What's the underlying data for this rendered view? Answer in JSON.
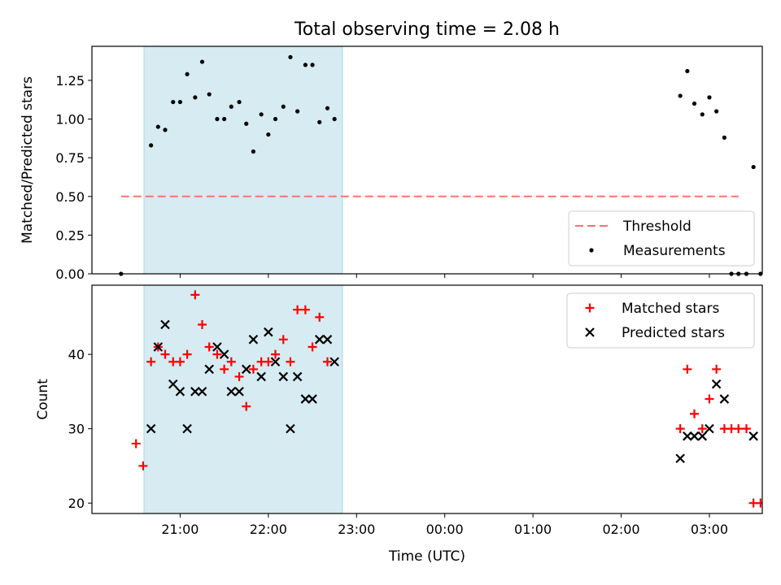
{
  "chart_data": {
    "title": "Total observing time = 2.08 h",
    "x_label": "Time (UTC)",
    "x_unit": "hours since 20:00 UTC (x ticks shown as clock time)",
    "x_ticks": [
      {
        "x": 1,
        "label": "21:00"
      },
      {
        "x": 2,
        "label": "22:00"
      },
      {
        "x": 3,
        "label": "23:00"
      },
      {
        "x": 4,
        "label": "00:00"
      },
      {
        "x": 5,
        "label": "01:00"
      },
      {
        "x": 6,
        "label": "02:00"
      },
      {
        "x": 7,
        "label": "03:00"
      }
    ],
    "xlim": [
      0.0,
      7.6
    ],
    "shaded_interval": [
      0.59,
      2.84
    ],
    "panels": [
      {
        "id": "ratio",
        "type": "scatter",
        "y_label": "Matched/Predicted stars",
        "ylim": [
          0.0,
          1.47
        ],
        "y_ticks": [
          "0.00",
          "0.25",
          "0.50",
          "0.75",
          "1.00",
          "1.25"
        ],
        "threshold": {
          "name": "Threshold",
          "value": 0.5,
          "x_range": [
            0.33,
            7.33
          ],
          "color": "#ff7070"
        },
        "legend": {
          "position": "lower right",
          "entries": [
            "Threshold",
            "Measurements"
          ]
        },
        "series": [
          {
            "name": "Measurements",
            "marker": "dot",
            "color": "#000000",
            "points": [
              [
                0.33,
                0.0
              ],
              [
                0.67,
                0.83
              ],
              [
                0.75,
                0.95
              ],
              [
                0.83,
                0.93
              ],
              [
                0.92,
                1.11
              ],
              [
                1.0,
                1.11
              ],
              [
                1.08,
                1.29
              ],
              [
                1.17,
                1.14
              ],
              [
                1.25,
                1.37
              ],
              [
                1.33,
                1.16
              ],
              [
                1.42,
                1.0
              ],
              [
                1.5,
                1.0
              ],
              [
                1.58,
                1.08
              ],
              [
                1.67,
                1.11
              ],
              [
                1.75,
                0.97
              ],
              [
                1.83,
                0.79
              ],
              [
                1.92,
                1.03
              ],
              [
                2.0,
                0.9
              ],
              [
                2.08,
                1.0
              ],
              [
                2.17,
                1.08
              ],
              [
                2.25,
                1.4
              ],
              [
                2.33,
                1.05
              ],
              [
                2.42,
                1.35
              ],
              [
                2.5,
                1.35
              ],
              [
                2.58,
                0.98
              ],
              [
                2.67,
                1.07
              ],
              [
                2.75,
                1.0
              ],
              [
                6.67,
                1.15
              ],
              [
                6.75,
                1.31
              ],
              [
                6.83,
                1.1
              ],
              [
                6.92,
                1.03
              ],
              [
                7.0,
                1.14
              ],
              [
                7.08,
                1.05
              ],
              [
                7.17,
                0.88
              ],
              [
                7.25,
                0.0
              ],
              [
                7.33,
                0.0
              ],
              [
                7.42,
                0.0
              ],
              [
                7.5,
                0.69
              ],
              [
                7.58,
                0.0
              ]
            ]
          }
        ]
      },
      {
        "id": "counts",
        "type": "scatter",
        "y_label": "Count",
        "ylim": [
          18.6,
          49.3
        ],
        "y_ticks": [
          "20",
          "30",
          "40"
        ],
        "legend": {
          "position": "upper right",
          "entries": [
            "Matched stars",
            "Predicted stars"
          ]
        },
        "series": [
          {
            "name": "Matched stars",
            "marker": "plus",
            "color": "#ff0000",
            "points": [
              [
                0.5,
                28
              ],
              [
                0.58,
                25
              ],
              [
                0.67,
                39
              ],
              [
                0.75,
                41
              ],
              [
                0.83,
                40
              ],
              [
                0.92,
                39
              ],
              [
                1.0,
                39
              ],
              [
                1.08,
                40
              ],
              [
                1.17,
                48
              ],
              [
                1.25,
                44
              ],
              [
                1.33,
                41
              ],
              [
                1.42,
                40
              ],
              [
                1.5,
                38
              ],
              [
                1.58,
                39
              ],
              [
                1.67,
                37
              ],
              [
                1.75,
                33
              ],
              [
                1.83,
                38
              ],
              [
                1.92,
                39
              ],
              [
                2.0,
                39
              ],
              [
                2.08,
                40
              ],
              [
                2.17,
                42
              ],
              [
                2.25,
                39
              ],
              [
                2.33,
                46
              ],
              [
                2.42,
                46
              ],
              [
                2.5,
                41
              ],
              [
                2.58,
                45
              ],
              [
                2.67,
                39
              ],
              [
                6.67,
                30
              ],
              [
                6.75,
                38
              ],
              [
                6.83,
                32
              ],
              [
                6.92,
                30
              ],
              [
                7.0,
                34
              ],
              [
                7.08,
                38
              ],
              [
                7.17,
                30
              ],
              [
                7.25,
                30
              ],
              [
                7.33,
                30
              ],
              [
                7.42,
                30
              ],
              [
                7.5,
                20
              ],
              [
                7.58,
                20
              ]
            ]
          },
          {
            "name": "Predicted stars",
            "marker": "x",
            "color": "#000000",
            "points": [
              [
                0.67,
                30
              ],
              [
                0.75,
                41
              ],
              [
                0.83,
                44
              ],
              [
                0.92,
                36
              ],
              [
                1.0,
                35
              ],
              [
                1.08,
                30
              ],
              [
                1.17,
                35
              ],
              [
                1.25,
                35
              ],
              [
                1.33,
                38
              ],
              [
                1.42,
                41
              ],
              [
                1.5,
                40
              ],
              [
                1.58,
                35
              ],
              [
                1.67,
                35
              ],
              [
                1.75,
                38
              ],
              [
                1.83,
                42
              ],
              [
                1.92,
                37
              ],
              [
                2.0,
                43
              ],
              [
                2.08,
                39
              ],
              [
                2.17,
                37
              ],
              [
                2.25,
                30
              ],
              [
                2.33,
                37
              ],
              [
                2.42,
                34
              ],
              [
                2.5,
                34
              ],
              [
                2.58,
                42
              ],
              [
                2.67,
                42
              ],
              [
                2.75,
                39
              ],
              [
                6.67,
                26
              ],
              [
                6.75,
                29
              ],
              [
                6.83,
                29
              ],
              [
                6.92,
                29
              ],
              [
                7.0,
                30
              ],
              [
                7.08,
                36
              ],
              [
                7.17,
                34
              ],
              [
                7.5,
                29
              ]
            ]
          }
        ]
      }
    ]
  }
}
